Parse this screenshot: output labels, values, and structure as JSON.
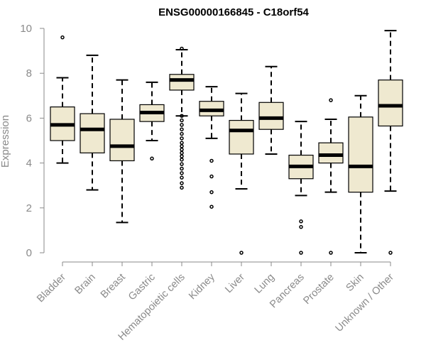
{
  "chart_data": {
    "type": "box",
    "title": "ENSG00000166845 - C18orf54",
    "ylabel": "Expression",
    "xlabel": "",
    "ylim": [
      0,
      10
    ],
    "yticks": [
      0,
      2,
      4,
      6,
      8,
      10
    ],
    "ytick_labels": [
      "0",
      "2",
      "4",
      "6",
      "8",
      "10"
    ],
    "grid": false,
    "legend": "none",
    "colors": {
      "box_fill": "#efe9d0",
      "stroke": "#000000",
      "axis": "#8a8a8a"
    },
    "categories": [
      "Bladder",
      "Brain",
      "Breast",
      "Gastric",
      "Hematopoietic cells",
      "Kidney",
      "Liver",
      "Lung",
      "Pancreas",
      "Prostate",
      "Skin",
      "Unknown / Other"
    ],
    "boxes": [
      {
        "name": "Bladder",
        "whisker_low": 4.0,
        "q1": 5.0,
        "median": 5.7,
        "q3": 6.5,
        "whisker_high": 7.8,
        "outliers": [
          9.6
        ]
      },
      {
        "name": "Brain",
        "whisker_low": 2.8,
        "q1": 4.45,
        "median": 5.5,
        "q3": 6.2,
        "whisker_high": 8.8,
        "outliers": []
      },
      {
        "name": "Breast",
        "whisker_low": 1.35,
        "q1": 4.1,
        "median": 4.75,
        "q3": 5.95,
        "whisker_high": 7.7,
        "outliers": []
      },
      {
        "name": "Gastric",
        "whisker_low": 5.0,
        "q1": 5.85,
        "median": 6.25,
        "q3": 6.6,
        "whisker_high": 7.6,
        "outliers": [
          4.2
        ]
      },
      {
        "name": "Hematopoietic cells",
        "whisker_low": 6.1,
        "q1": 7.25,
        "median": 7.7,
        "q3": 7.95,
        "whisker_high": 9.05,
        "outliers": [
          9.1,
          6.1,
          5.9,
          5.7,
          5.5,
          5.3,
          5.1,
          4.9,
          4.75,
          4.6,
          4.45,
          4.3,
          4.15,
          3.95,
          3.75,
          3.55,
          3.35,
          3.1,
          2.9
        ]
      },
      {
        "name": "Kidney",
        "whisker_low": 5.1,
        "q1": 6.1,
        "median": 6.35,
        "q3": 6.75,
        "whisker_high": 7.4,
        "outliers": [
          4.1,
          3.4,
          2.7,
          2.05
        ]
      },
      {
        "name": "Liver",
        "whisker_low": 2.85,
        "q1": 4.4,
        "median": 5.45,
        "q3": 5.9,
        "whisker_high": 7.1,
        "outliers": [
          0
        ]
      },
      {
        "name": "Lung",
        "whisker_low": 4.4,
        "q1": 5.5,
        "median": 6.0,
        "q3": 6.7,
        "whisker_high": 8.3,
        "outliers": []
      },
      {
        "name": "Pancreas",
        "whisker_low": 2.55,
        "q1": 3.3,
        "median": 3.85,
        "q3": 4.35,
        "whisker_high": 5.85,
        "outliers": [
          1.4,
          1.15,
          0
        ]
      },
      {
        "name": "Prostate",
        "whisker_low": 2.7,
        "q1": 4.0,
        "median": 4.35,
        "q3": 4.9,
        "whisker_high": 5.95,
        "outliers": [
          6.8,
          0
        ]
      },
      {
        "name": "Skin",
        "whisker_low": 0.0,
        "q1": 2.7,
        "median": 3.85,
        "q3": 6.05,
        "whisker_high": 7.0,
        "outliers": []
      },
      {
        "name": "Unknown / Other",
        "whisker_low": 2.75,
        "q1": 5.65,
        "median": 6.55,
        "q3": 7.7,
        "whisker_high": 9.9,
        "outliers": [
          0
        ]
      }
    ]
  }
}
